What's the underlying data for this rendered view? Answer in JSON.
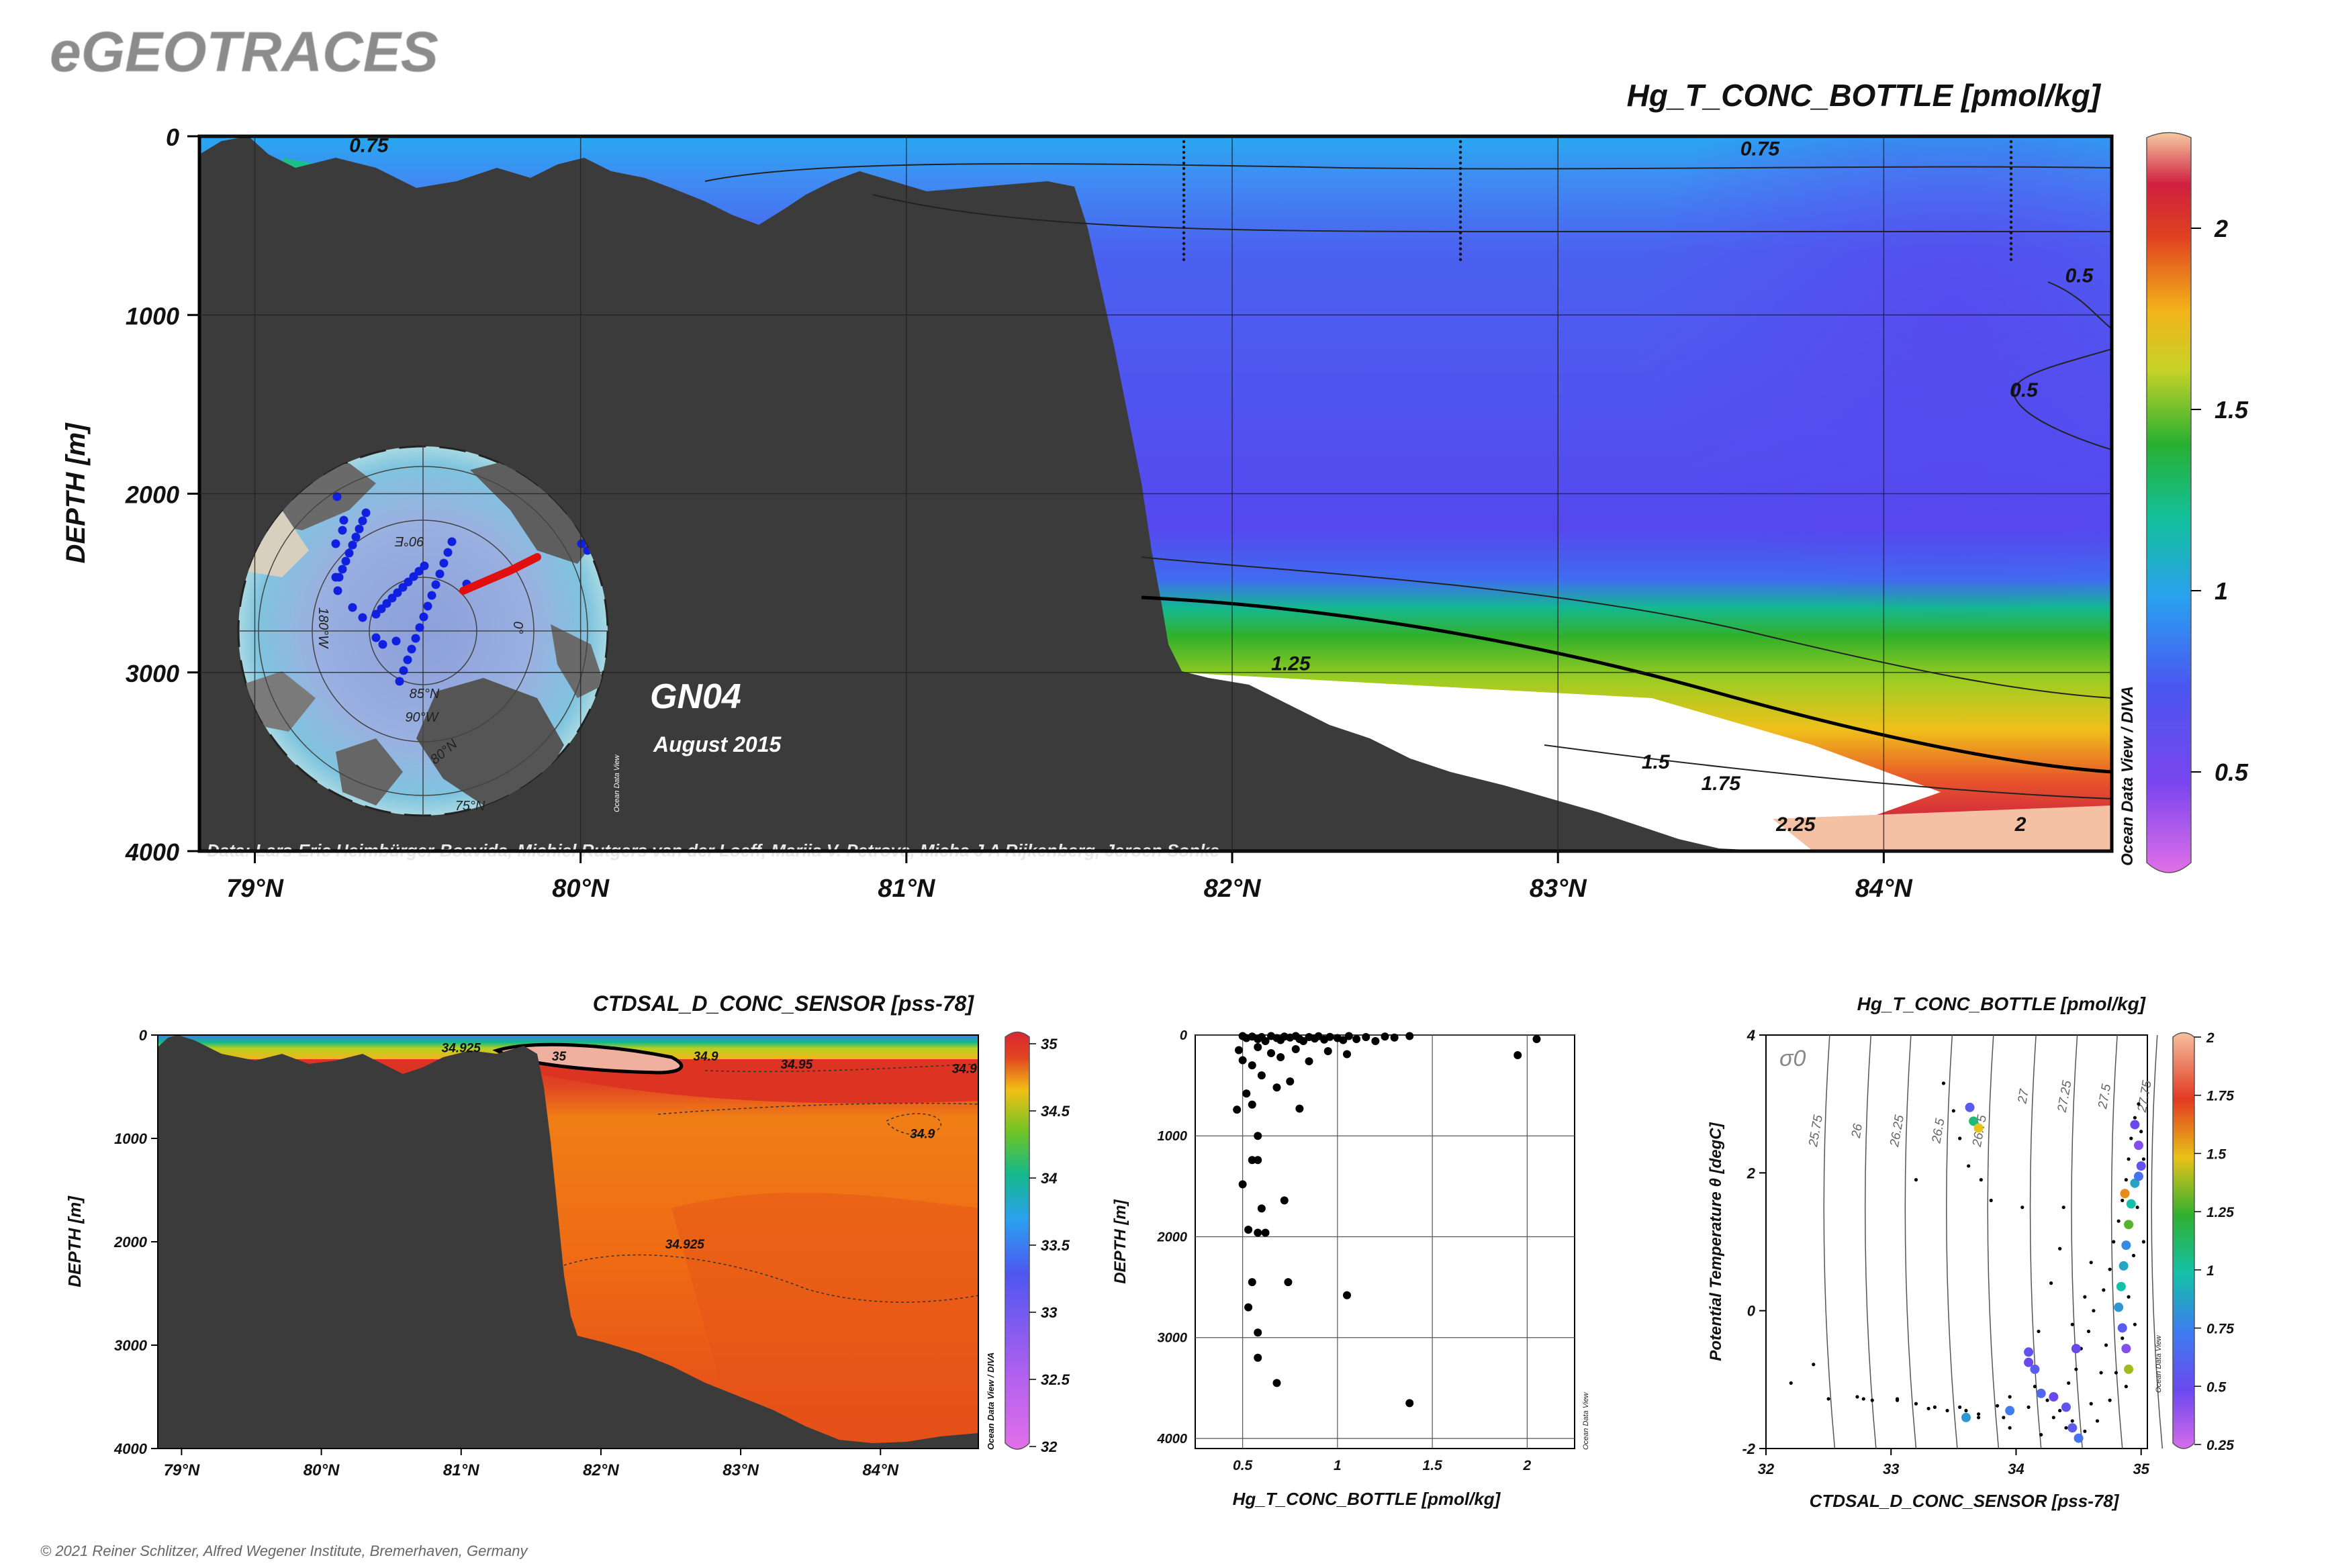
{
  "header": {
    "brand": "eGEOTRACES",
    "footer": "© 2021 Reiner Schlitzer, Alfred Wegener Institute, Bremerhaven, Germany"
  },
  "chart_data": [
    {
      "id": "main-section",
      "type": "heatmap",
      "title": "Hg_T_CONC_BOTTLE [pmol/kg]",
      "ylabel": "DEPTH [m]",
      "x_ticks": [
        "79°N",
        "80°N",
        "81°N",
        "82°N",
        "83°N",
        "84°N"
      ],
      "x_tick_values": [
        79,
        80,
        81,
        82,
        83,
        84
      ],
      "y_ticks": [
        "0",
        "1000",
        "2000",
        "3000",
        "4000"
      ],
      "y_tick_values": [
        0,
        1000,
        2000,
        3000,
        4000
      ],
      "xlim": [
        78.83,
        84.7
      ],
      "ylim": [
        4000,
        0
      ],
      "colorbar": {
        "ticks": [
          "0.5",
          "1",
          "1.5",
          "2"
        ],
        "values": [
          0.5,
          1,
          1.5,
          2
        ],
        "range": [
          0.25,
          2.25
        ]
      },
      "contour_labels": [
        {
          "text": "0.75",
          "lat": 79.35,
          "depth": 50
        },
        {
          "text": "0.75",
          "lat": 83.62,
          "depth": 70
        },
        {
          "text": "0.5",
          "lat": 84.6,
          "depth": 780
        },
        {
          "text": "0.5",
          "lat": 84.43,
          "depth": 1420
        },
        {
          "text": "1.25",
          "lat": 82.18,
          "depth": 2950
        },
        {
          "text": "1.5",
          "lat": 83.3,
          "depth": 3500
        },
        {
          "text": "1.75",
          "lat": 83.5,
          "depth": 3620
        },
        {
          "text": "2.25",
          "lat": 83.73,
          "depth": 3850
        },
        {
          "text": "2",
          "lat": 84.42,
          "depth": 3850
        }
      ],
      "station_label": "GN04",
      "date_label": "August 2015",
      "credits": "Data: Lars-Eric Heimbürger-Boavida, Michiel Rutgers van der Loeff, Mariia V. Petrova, Micha J A Rijkenberg, Jeroen Sonke",
      "odv_label": "Ocean Data View / DIVA",
      "inset_map": {
        "labels": [
          "90°E",
          "180°W",
          "0°",
          "85°N",
          "90°W",
          "80°N",
          "75°N"
        ],
        "odv_label": "Ocean Data View"
      }
    },
    {
      "id": "salinity-section",
      "type": "heatmap",
      "title": "CTDSAL_D_CONC_SENSOR [pss-78]",
      "ylabel": "DEPTH [m]",
      "x_ticks": [
        "79°N",
        "80°N",
        "81°N",
        "82°N",
        "83°N",
        "84°N"
      ],
      "x_tick_values": [
        79,
        80,
        81,
        82,
        83,
        84
      ],
      "y_ticks": [
        "0",
        "1000",
        "2000",
        "3000",
        "4000"
      ],
      "y_tick_values": [
        0,
        1000,
        2000,
        3000,
        4000
      ],
      "xlim": [
        78.83,
        84.7
      ],
      "ylim": [
        4000,
        0
      ],
      "colorbar": {
        "ticks": [
          "32",
          "32.5",
          "33",
          "33.5",
          "34",
          "34.5",
          "35"
        ],
        "values": [
          32,
          32.5,
          33,
          33.5,
          34,
          34.5,
          35
        ],
        "range": [
          32,
          35
        ]
      },
      "contour_labels": [
        {
          "text": "34.925",
          "lat": 81.0,
          "depth": 120
        },
        {
          "text": "35",
          "lat": 81.7,
          "depth": 200
        },
        {
          "text": "34.9",
          "lat": 82.75,
          "depth": 200
        },
        {
          "text": "34.95",
          "lat": 83.4,
          "depth": 280
        },
        {
          "text": "34.9",
          "lat": 84.6,
          "depth": 320
        },
        {
          "text": "34.9",
          "lat": 84.3,
          "depth": 950
        },
        {
          "text": "34.925",
          "lat": 82.6,
          "depth": 2020
        }
      ],
      "odv_label": "Ocean Data View / DIVA"
    },
    {
      "id": "profile-scatter",
      "type": "scatter",
      "xlabel": "Hg_T_CONC_BOTTLE [pmol/kg]",
      "ylabel": "DEPTH [m]",
      "x_ticks": [
        "0.5",
        "1",
        "1.5",
        "2"
      ],
      "x_tick_values": [
        0.5,
        1,
        1.5,
        2
      ],
      "y_ticks": [
        "0",
        "1000",
        "2000",
        "3000",
        "4000"
      ],
      "y_tick_values": [
        0,
        1000,
        2000,
        3000,
        4000
      ],
      "xlim": [
        0.25,
        2.25
      ],
      "ylim": [
        4100,
        0
      ],
      "odv_label": "Ocean Data View",
      "points": [
        [
          0.5,
          10
        ],
        [
          0.52,
          30
        ],
        [
          0.55,
          15
        ],
        [
          0.58,
          40
        ],
        [
          0.6,
          20
        ],
        [
          0.62,
          60
        ],
        [
          0.65,
          10
        ],
        [
          0.68,
          30
        ],
        [
          0.7,
          50
        ],
        [
          0.72,
          15
        ],
        [
          0.75,
          25
        ],
        [
          0.78,
          10
        ],
        [
          0.8,
          40
        ],
        [
          0.82,
          60
        ],
        [
          0.85,
          20
        ],
        [
          0.88,
          35
        ],
        [
          0.9,
          12
        ],
        [
          0.93,
          45
        ],
        [
          0.96,
          18
        ],
        [
          1.0,
          30
        ],
        [
          1.03,
          50
        ],
        [
          1.06,
          10
        ],
        [
          1.1,
          40
        ],
        [
          1.15,
          20
        ],
        [
          1.2,
          60
        ],
        [
          1.25,
          15
        ],
        [
          1.3,
          25
        ],
        [
          1.38,
          10
        ],
        [
          1.95,
          200
        ],
        [
          2.05,
          40
        ],
        [
          0.48,
          150
        ],
        [
          0.5,
          250
        ],
        [
          0.55,
          300
        ],
        [
          0.58,
          120
        ],
        [
          0.65,
          180
        ],
        [
          0.7,
          220
        ],
        [
          0.78,
          140
        ],
        [
          0.85,
          260
        ],
        [
          0.95,
          160
        ],
        [
          1.05,
          190
        ],
        [
          0.6,
          400
        ],
        [
          0.68,
          520
        ],
        [
          0.52,
          580
        ],
        [
          0.75,
          460
        ],
        [
          0.47,
          740
        ],
        [
          0.55,
          690
        ],
        [
          0.8,
          730
        ],
        [
          0.58,
          1000
        ],
        [
          0.55,
          1240
        ],
        [
          0.58,
          1240
        ],
        [
          0.5,
          1480
        ],
        [
          0.6,
          1720
        ],
        [
          0.53,
          1930
        ],
        [
          0.58,
          1960
        ],
        [
          0.62,
          1960
        ],
        [
          0.72,
          1640
        ],
        [
          0.55,
          2450
        ],
        [
          0.74,
          2450
        ],
        [
          1.05,
          2580
        ],
        [
          0.53,
          2700
        ],
        [
          0.58,
          2950
        ],
        [
          0.58,
          3200
        ],
        [
          0.68,
          3450
        ],
        [
          1.38,
          3650
        ]
      ]
    },
    {
      "id": "ts-diagram",
      "type": "scatter",
      "title": "Hg_T_CONC_BOTTLE [pmol/kg]",
      "xlabel": "CTDSAL_D_CONC_SENSOR [pss-78]",
      "ylabel": "Potential Temperature θ [degC]",
      "x_ticks": [
        "32",
        "33",
        "34",
        "35"
      ],
      "x_tick_values": [
        32,
        33,
        34,
        35
      ],
      "y_ticks": [
        "-2",
        "0",
        "2",
        "4"
      ],
      "y_tick_values": [
        -2,
        0,
        2,
        4
      ],
      "xlim": [
        32,
        35.05
      ],
      "ylim": [
        -2,
        4
      ],
      "isopycnal_symbol": "σ0",
      "isopycnals": [
        "25.75",
        "26",
        "26.25",
        "26.5",
        "26.75",
        "27",
        "27.25",
        "27.5",
        "27.75"
      ],
      "colorbar": {
        "ticks": [
          "0.25",
          "0.5",
          "0.75",
          "1",
          "1.25",
          "1.5",
          "1.75",
          "2"
        ],
        "values": [
          0.25,
          0.5,
          0.75,
          1,
          1.25,
          1.5,
          1.75,
          2
        ],
        "range": [
          0.25,
          2
        ]
      },
      "odv_label": "Ocean Data View",
      "background_points": [
        [
          32.2,
          -1.05
        ],
        [
          32.38,
          -0.78
        ],
        [
          32.5,
          -1.28
        ],
        [
          32.73,
          -1.25
        ],
        [
          32.78,
          -1.28
        ],
        [
          32.85,
          -1.3
        ],
        [
          33.05,
          -1.28
        ],
        [
          33.2,
          -1.35
        ],
        [
          33.3,
          -1.42
        ],
        [
          33.45,
          -1.45
        ],
        [
          33.55,
          -1.4
        ],
        [
          33.7,
          -1.5
        ],
        [
          33.85,
          -1.38
        ],
        [
          33.95,
          -1.25
        ],
        [
          34.15,
          -1.1
        ],
        [
          34.25,
          -1.3
        ],
        [
          34.3,
          -1.55
        ],
        [
          34.4,
          -1.7
        ],
        [
          34.42,
          -1.05
        ],
        [
          34.48,
          -0.85
        ],
        [
          34.52,
          -0.55
        ],
        [
          34.58,
          -0.3
        ],
        [
          34.62,
          0.0
        ],
        [
          34.7,
          0.3
        ],
        [
          34.75,
          0.6
        ],
        [
          34.78,
          1.0
        ],
        [
          34.82,
          1.3
        ],
        [
          34.85,
          1.6
        ],
        [
          34.88,
          1.9
        ],
        [
          34.9,
          2.2
        ],
        [
          34.92,
          2.5
        ],
        [
          34.95,
          2.8
        ],
        [
          34.98,
          3.0
        ],
        [
          35.0,
          2.6
        ],
        [
          35.02,
          2.2
        ],
        [
          34.97,
          1.5
        ],
        [
          34.94,
          0.8
        ],
        [
          34.9,
          0.2
        ],
        [
          34.85,
          -0.4
        ],
        [
          34.8,
          -0.9
        ],
        [
          34.75,
          -1.3
        ],
        [
          34.65,
          -1.6
        ],
        [
          34.55,
          -1.75
        ],
        [
          34.2,
          -1.8
        ],
        [
          33.95,
          -1.7
        ],
        [
          33.7,
          -1.55
        ],
        [
          33.6,
          -1.45
        ],
        [
          33.35,
          -1.4
        ],
        [
          33.05,
          -1.3
        ],
        [
          33.2,
          1.9
        ],
        [
          33.42,
          3.3
        ],
        [
          33.5,
          2.9
        ],
        [
          33.55,
          2.5
        ],
        [
          33.62,
          2.1
        ],
        [
          33.72,
          1.9
        ],
        [
          33.8,
          1.6
        ],
        [
          34.05,
          1.5
        ],
        [
          34.08,
          -0.6
        ],
        [
          34.18,
          -0.3
        ],
        [
          34.28,
          0.4
        ],
        [
          34.35,
          0.9
        ],
        [
          34.38,
          1.5
        ],
        [
          34.45,
          -0.2
        ],
        [
          34.55,
          0.2
        ],
        [
          34.6,
          0.7
        ],
        [
          34.68,
          -0.9
        ],
        [
          34.72,
          -0.5
        ],
        [
          34.88,
          -1.1
        ],
        [
          34.95,
          -0.2
        ],
        [
          35.02,
          1.0
        ],
        [
          34.1,
          -1.4
        ],
        [
          33.9,
          -1.55
        ],
        [
          34.35,
          -1.45
        ],
        [
          34.45,
          -1.6
        ],
        [
          34.6,
          -1.35
        ]
      ],
      "colored_points": [
        {
          "s": 33.63,
          "t": 2.95,
          "v": 0.6
        },
        {
          "s": 33.66,
          "t": 2.75,
          "v": 1.1
        },
        {
          "s": 33.7,
          "t": 2.65,
          "v": 1.5
        },
        {
          "s": 34.95,
          "t": 2.7,
          "v": 0.5
        },
        {
          "s": 34.98,
          "t": 2.4,
          "v": 0.45
        },
        {
          "s": 35.0,
          "t": 2.1,
          "v": 0.55
        },
        {
          "s": 34.95,
          "t": 1.85,
          "v": 0.9
        },
        {
          "s": 34.92,
          "t": 1.55,
          "v": 1.0
        },
        {
          "s": 34.9,
          "t": 1.25,
          "v": 1.3
        },
        {
          "s": 34.88,
          "t": 0.95,
          "v": 0.8
        },
        {
          "s": 34.86,
          "t": 0.65,
          "v": 0.9
        },
        {
          "s": 34.84,
          "t": 0.35,
          "v": 1.0
        },
        {
          "s": 34.82,
          "t": 0.05,
          "v": 0.85
        },
        {
          "s": 34.85,
          "t": -0.25,
          "v": 0.6
        },
        {
          "s": 34.88,
          "t": -0.55,
          "v": 0.45
        },
        {
          "s": 34.9,
          "t": -0.85,
          "v": 1.4
        },
        {
          "s": 34.87,
          "t": 1.7,
          "v": 1.6
        },
        {
          "s": 34.98,
          "t": 1.95,
          "v": 0.7
        },
        {
          "s": 34.1,
          "t": -0.6,
          "v": 0.55
        },
        {
          "s": 34.1,
          "t": -0.75,
          "v": 0.5
        },
        {
          "s": 34.15,
          "t": -0.85,
          "v": 0.6
        },
        {
          "s": 34.2,
          "t": -1.2,
          "v": 0.65
        },
        {
          "s": 34.3,
          "t": -1.25,
          "v": 0.5
        },
        {
          "s": 34.4,
          "t": -1.4,
          "v": 0.55
        },
        {
          "s": 34.45,
          "t": -1.7,
          "v": 0.6
        },
        {
          "s": 34.5,
          "t": -1.85,
          "v": 0.7
        },
        {
          "s": 33.95,
          "t": -1.45,
          "v": 0.75
        },
        {
          "s": 33.6,
          "t": -1.55,
          "v": 0.85
        },
        {
          "s": 34.48,
          "t": -0.55,
          "v": 0.5
        }
      ]
    }
  ]
}
